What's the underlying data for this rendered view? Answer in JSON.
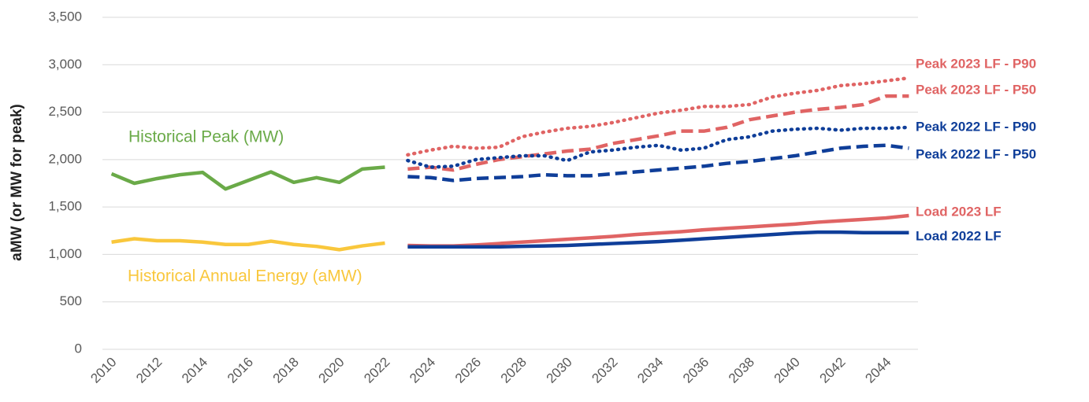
{
  "chart_data": {
    "type": "line",
    "y_label": "aMW (or MW for peak)",
    "x": [
      2010,
      2011,
      2012,
      2013,
      2014,
      2015,
      2016,
      2017,
      2018,
      2019,
      2020,
      2021,
      2022,
      2023,
      2024,
      2025,
      2026,
      2027,
      2028,
      2029,
      2030,
      2031,
      2032,
      2033,
      2034,
      2035,
      2036,
      2037,
      2038,
      2039,
      2040,
      2041,
      2042,
      2043,
      2044,
      2045
    ],
    "xlim": [
      2009.6,
      2045.4
    ],
    "xticks": [
      2010,
      2012,
      2014,
      2016,
      2018,
      2020,
      2022,
      2024,
      2026,
      2028,
      2030,
      2032,
      2034,
      2036,
      2038,
      2040,
      2042,
      2044
    ],
    "ylim": [
      0,
      3500
    ],
    "yticks": [
      0,
      500,
      {
        "value": 1000,
        "label": "1,000"
      },
      {
        "value": 1500,
        "label": "1,500"
      },
      {
        "value": 2000,
        "label": "2,000"
      },
      {
        "value": 2500,
        "label": "2,500"
      },
      {
        "value": 3000,
        "label": "3,000"
      },
      {
        "value": 3500,
        "label": "3,500"
      }
    ],
    "grid": true,
    "series": [
      {
        "name": "Historical Peak (MW)",
        "color": "#6aaa48",
        "dash": "solid",
        "values": [
          1850,
          1750,
          1800,
          1840,
          1865,
          1690,
          1780,
          1870,
          1760,
          1810,
          1760,
          1900,
          1920,
          null,
          null,
          null,
          null,
          null,
          null,
          null,
          null,
          null,
          null,
          null,
          null,
          null,
          null,
          null,
          null,
          null,
          null,
          null,
          null,
          null,
          null,
          null
        ]
      },
      {
        "name": "Historical Annual Energy (aMW)",
        "color": "#f9c73c",
        "dash": "solid",
        "values": [
          1130,
          1165,
          1145,
          1145,
          1130,
          1105,
          1105,
          1140,
          1105,
          1085,
          1050,
          1090,
          1120,
          null,
          null,
          null,
          null,
          null,
          null,
          null,
          null,
          null,
          null,
          null,
          null,
          null,
          null,
          null,
          null,
          null,
          null,
          null,
          null,
          null,
          null,
          null
        ]
      },
      {
        "name": "Peak 2023 LF - P90",
        "color": "#e06464",
        "dash": "dotted",
        "values": [
          null,
          null,
          null,
          null,
          null,
          null,
          null,
          null,
          null,
          null,
          null,
          null,
          null,
          2050,
          2100,
          2140,
          2120,
          2130,
          2240,
          2290,
          2330,
          2350,
          2390,
          2440,
          2490,
          2520,
          2560,
          2560,
          2580,
          2660,
          2700,
          2730,
          2780,
          2800,
          2830,
          2860
        ]
      },
      {
        "name": "Peak 2023 LF - P50",
        "color": "#e06464",
        "dash": "dashed",
        "values": [
          null,
          null,
          null,
          null,
          null,
          null,
          null,
          null,
          null,
          null,
          null,
          null,
          null,
          1900,
          1920,
          1890,
          1950,
          2000,
          2030,
          2060,
          2090,
          2110,
          2170,
          2210,
          2250,
          2300,
          2300,
          2340,
          2420,
          2460,
          2500,
          2530,
          2550,
          2580,
          2670,
          2670
        ]
      },
      {
        "name": "Peak 2022 LF - P90",
        "color": "#0f3e99",
        "dash": "dotted",
        "values": [
          null,
          null,
          null,
          null,
          null,
          null,
          null,
          null,
          null,
          null,
          null,
          null,
          null,
          1990,
          1920,
          1930,
          2000,
          2020,
          2040,
          2040,
          1990,
          2080,
          2100,
          2130,
          2150,
          2100,
          2120,
          2210,
          2240,
          2300,
          2320,
          2330,
          2310,
          2330,
          2330,
          2340
        ]
      },
      {
        "name": "Peak 2022 LF - P50",
        "color": "#0f3e99",
        "dash": "dashed",
        "values": [
          null,
          null,
          null,
          null,
          null,
          null,
          null,
          null,
          null,
          null,
          null,
          null,
          null,
          1820,
          1810,
          1780,
          1800,
          1810,
          1820,
          1840,
          1830,
          1830,
          1850,
          1870,
          1890,
          1910,
          1930,
          1960,
          1980,
          2010,
          2040,
          2080,
          2120,
          2140,
          2150,
          2120
        ]
      },
      {
        "name": "Load 2023 LF",
        "color": "#e06464",
        "dash": "solid",
        "values": [
          null,
          null,
          null,
          null,
          null,
          null,
          null,
          null,
          null,
          null,
          null,
          null,
          null,
          1095,
          1090,
          1090,
          1100,
          1115,
          1130,
          1145,
          1160,
          1175,
          1190,
          1210,
          1225,
          1240,
          1260,
          1275,
          1290,
          1305,
          1320,
          1340,
          1355,
          1370,
          1385,
          1410
        ]
      },
      {
        "name": "Load 2022 LF",
        "color": "#0f3e99",
        "dash": "solid",
        "values": [
          null,
          null,
          null,
          null,
          null,
          null,
          null,
          null,
          null,
          null,
          null,
          null,
          null,
          1080,
          1080,
          1080,
          1080,
          1080,
          1085,
          1090,
          1095,
          1105,
          1115,
          1125,
          1135,
          1150,
          1165,
          1180,
          1195,
          1210,
          1225,
          1235,
          1235,
          1230,
          1230,
          1230
        ]
      }
    ]
  }
}
